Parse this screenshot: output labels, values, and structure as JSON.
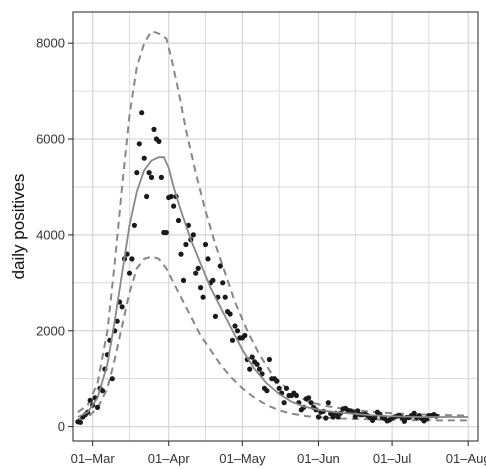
{
  "chart_data": {
    "type": "scatter",
    "title": "",
    "xlabel": "",
    "ylabel": "daily positives",
    "x_axis": {
      "type": "date",
      "range": [
        "2020-02-22",
        "2020-08-05"
      ],
      "ticks": [
        {
          "date": "2020-03-01",
          "label": "01–Mar"
        },
        {
          "date": "2020-04-01",
          "label": "01–Apr"
        },
        {
          "date": "2020-05-01",
          "label": "01–May"
        },
        {
          "date": "2020-06-01",
          "label": "01–Jun"
        },
        {
          "date": "2020-07-01",
          "label": "01–Jul"
        },
        {
          "date": "2020-08-01",
          "label": "01–Aug"
        }
      ]
    },
    "y_axis": {
      "range": [
        -300,
        8650
      ],
      "ticks": [
        0,
        2000,
        4000,
        6000,
        8000
      ]
    },
    "grid": true,
    "colors": {
      "points": "#1a1a1a",
      "fit": "#888888",
      "band": "#888888",
      "grid": "#d6d6d6",
      "frame": "#222222"
    },
    "series": [
      {
        "kind": "points",
        "points": [
          [
            "2020-02-24",
            100
          ],
          [
            "2020-02-25",
            90
          ],
          [
            "2020-02-26",
            200
          ],
          [
            "2020-02-27",
            250
          ],
          [
            "2020-02-28",
            300
          ],
          [
            "2020-02-29",
            550
          ],
          [
            "2020-03-01",
            450
          ],
          [
            "2020-03-02",
            600
          ],
          [
            "2020-03-03",
            400
          ],
          [
            "2020-03-04",
            800
          ],
          [
            "2020-03-05",
            750
          ],
          [
            "2020-03-06",
            1200
          ],
          [
            "2020-03-07",
            1500
          ],
          [
            "2020-03-08",
            1800
          ],
          [
            "2020-03-09",
            1000
          ],
          [
            "2020-03-10",
            2000
          ],
          [
            "2020-03-11",
            2200
          ],
          [
            "2020-03-12",
            2600
          ],
          [
            "2020-03-13",
            2500
          ],
          [
            "2020-03-14",
            3500
          ],
          [
            "2020-03-15",
            3600
          ],
          [
            "2020-03-16",
            3200
          ],
          [
            "2020-03-17",
            3500
          ],
          [
            "2020-03-18",
            4200
          ],
          [
            "2020-03-19",
            5300
          ],
          [
            "2020-03-20",
            5900
          ],
          [
            "2020-03-21",
            6550
          ],
          [
            "2020-03-22",
            5600
          ],
          [
            "2020-03-23",
            4800
          ],
          [
            "2020-03-24",
            5300
          ],
          [
            "2020-03-25",
            5200
          ],
          [
            "2020-03-26",
            6200
          ],
          [
            "2020-03-27",
            6000
          ],
          [
            "2020-03-28",
            5950
          ],
          [
            "2020-03-29",
            5200
          ],
          [
            "2020-03-30",
            4050
          ],
          [
            "2020-03-31",
            4050
          ],
          [
            "2020-04-01",
            4780
          ],
          [
            "2020-04-02",
            4800
          ],
          [
            "2020-04-03",
            4600
          ],
          [
            "2020-04-04",
            4800
          ],
          [
            "2020-04-05",
            4300
          ],
          [
            "2020-04-06",
            3600
          ],
          [
            "2020-04-07",
            3050
          ],
          [
            "2020-04-08",
            3800
          ],
          [
            "2020-04-09",
            4200
          ],
          [
            "2020-04-10",
            3900
          ],
          [
            "2020-04-11",
            4000
          ],
          [
            "2020-04-12",
            3200
          ],
          [
            "2020-04-13",
            3300
          ],
          [
            "2020-04-14",
            2900
          ],
          [
            "2020-04-15",
            2700
          ],
          [
            "2020-04-16",
            3800
          ],
          [
            "2020-04-17",
            3500
          ],
          [
            "2020-04-18",
            3000
          ],
          [
            "2020-04-19",
            3050
          ],
          [
            "2020-04-20",
            2300
          ],
          [
            "2020-04-21",
            2700
          ],
          [
            "2020-04-22",
            3350
          ],
          [
            "2020-04-23",
            3000
          ],
          [
            "2020-04-24",
            2700
          ],
          [
            "2020-04-25",
            2400
          ],
          [
            "2020-04-26",
            2350
          ],
          [
            "2020-04-27",
            1800
          ],
          [
            "2020-04-28",
            2100
          ],
          [
            "2020-04-29",
            2000
          ],
          [
            "2020-04-30",
            1850
          ],
          [
            "2020-05-01",
            1850
          ],
          [
            "2020-05-02",
            1900
          ],
          [
            "2020-05-03",
            1400
          ],
          [
            "2020-05-04",
            1200
          ],
          [
            "2020-05-05",
            1450
          ],
          [
            "2020-05-06",
            1350
          ],
          [
            "2020-05-07",
            1300
          ],
          [
            "2020-05-08",
            1200
          ],
          [
            "2020-05-09",
            1100
          ],
          [
            "2020-05-10",
            800
          ],
          [
            "2020-05-11",
            750
          ],
          [
            "2020-05-12",
            1400
          ],
          [
            "2020-05-13",
            1000
          ],
          [
            "2020-05-14",
            1000
          ],
          [
            "2020-05-15",
            950
          ],
          [
            "2020-05-16",
            800
          ],
          [
            "2020-05-17",
            700
          ],
          [
            "2020-05-18",
            500
          ],
          [
            "2020-05-19",
            800
          ],
          [
            "2020-05-20",
            650
          ],
          [
            "2020-05-21",
            650
          ],
          [
            "2020-05-22",
            700
          ],
          [
            "2020-05-23",
            650
          ],
          [
            "2020-05-24",
            500
          ],
          [
            "2020-05-25",
            350
          ],
          [
            "2020-05-26",
            400
          ],
          [
            "2020-05-27",
            580
          ],
          [
            "2020-05-28",
            600
          ],
          [
            "2020-05-29",
            500
          ],
          [
            "2020-05-30",
            400
          ],
          [
            "2020-05-31",
            350
          ],
          [
            "2020-06-01",
            200
          ],
          [
            "2020-06-02",
            300
          ],
          [
            "2020-06-03",
            320
          ],
          [
            "2020-06-04",
            180
          ],
          [
            "2020-06-05",
            500
          ],
          [
            "2020-06-06",
            270
          ],
          [
            "2020-06-07",
            200
          ],
          [
            "2020-06-08",
            280
          ],
          [
            "2020-06-09",
            200
          ],
          [
            "2020-06-10",
            280
          ],
          [
            "2020-06-11",
            370
          ],
          [
            "2020-06-12",
            380
          ],
          [
            "2020-06-13",
            340
          ],
          [
            "2020-06-14",
            330
          ],
          [
            "2020-06-15",
            300
          ],
          [
            "2020-06-16",
            210
          ],
          [
            "2020-06-17",
            330
          ],
          [
            "2020-06-18",
            250
          ],
          [
            "2020-06-19",
            250
          ],
          [
            "2020-06-20",
            260
          ],
          [
            "2020-06-21",
            230
          ],
          [
            "2020-06-22",
            190
          ],
          [
            "2020-06-23",
            130
          ],
          [
            "2020-06-24",
            190
          ],
          [
            "2020-06-25",
            300
          ],
          [
            "2020-06-26",
            260
          ],
          [
            "2020-06-27",
            190
          ],
          [
            "2020-06-28",
            170
          ],
          [
            "2020-06-29",
            120
          ],
          [
            "2020-06-30",
            140
          ],
          [
            "2020-07-01",
            180
          ],
          [
            "2020-07-02",
            200
          ],
          [
            "2020-07-03",
            220
          ],
          [
            "2020-07-04",
            230
          ],
          [
            "2020-07-05",
            190
          ],
          [
            "2020-07-06",
            110
          ],
          [
            "2020-07-07",
            190
          ],
          [
            "2020-07-08",
            190
          ],
          [
            "2020-07-09",
            230
          ],
          [
            "2020-07-10",
            280
          ],
          [
            "2020-07-11",
            190
          ],
          [
            "2020-07-12",
            230
          ],
          [
            "2020-07-13",
            170
          ],
          [
            "2020-07-14",
            120
          ],
          [
            "2020-07-15",
            160
          ],
          [
            "2020-07-16",
            230
          ],
          [
            "2020-07-17",
            230
          ],
          [
            "2020-07-18",
            250
          ],
          [
            "2020-07-19",
            220
          ]
        ]
      },
      {
        "kind": "fit",
        "points": [
          [
            "2020-02-24",
            200
          ],
          [
            "2020-02-28",
            300
          ],
          [
            "2020-03-03",
            600
          ],
          [
            "2020-03-07",
            1300
          ],
          [
            "2020-03-10",
            2200
          ],
          [
            "2020-03-13",
            3200
          ],
          [
            "2020-03-16",
            4200
          ],
          [
            "2020-03-19",
            4900
          ],
          [
            "2020-03-22",
            5350
          ],
          [
            "2020-03-25",
            5550
          ],
          [
            "2020-03-28",
            5620
          ],
          [
            "2020-03-30",
            5620
          ],
          [
            "2020-04-01",
            5400
          ],
          [
            "2020-04-03",
            5000
          ],
          [
            "2020-04-06",
            4500
          ],
          [
            "2020-04-10",
            3900
          ],
          [
            "2020-04-14",
            3400
          ],
          [
            "2020-04-18",
            2900
          ],
          [
            "2020-04-22",
            2500
          ],
          [
            "2020-04-26",
            2100
          ],
          [
            "2020-05-01",
            1600
          ],
          [
            "2020-05-06",
            1200
          ],
          [
            "2020-05-11",
            900
          ],
          [
            "2020-05-16",
            680
          ],
          [
            "2020-05-21",
            520
          ],
          [
            "2020-05-26",
            420
          ],
          [
            "2020-06-01",
            350
          ],
          [
            "2020-06-08",
            300
          ],
          [
            "2020-06-15",
            270
          ],
          [
            "2020-06-22",
            240
          ],
          [
            "2020-06-29",
            220
          ],
          [
            "2020-07-06",
            210
          ],
          [
            "2020-07-13",
            200
          ],
          [
            "2020-07-20",
            200
          ],
          [
            "2020-07-27",
            200
          ],
          [
            "2020-08-01",
            200
          ]
        ]
      },
      {
        "kind": "band-upper",
        "points": [
          [
            "2020-02-24",
            300
          ],
          [
            "2020-02-28",
            450
          ],
          [
            "2020-03-03",
            900
          ],
          [
            "2020-03-07",
            2000
          ],
          [
            "2020-03-10",
            3400
          ],
          [
            "2020-03-13",
            5000
          ],
          [
            "2020-03-16",
            6500
          ],
          [
            "2020-03-19",
            7500
          ],
          [
            "2020-03-22",
            8000
          ],
          [
            "2020-03-25",
            8250
          ],
          [
            "2020-03-28",
            8200
          ],
          [
            "2020-03-31",
            8100
          ],
          [
            "2020-04-02",
            7700
          ],
          [
            "2020-04-05",
            7000
          ],
          [
            "2020-04-08",
            6200
          ],
          [
            "2020-04-12",
            5300
          ],
          [
            "2020-04-16",
            4500
          ],
          [
            "2020-04-20",
            3800
          ],
          [
            "2020-04-24",
            3200
          ],
          [
            "2020-04-28",
            2600
          ],
          [
            "2020-05-03",
            2000
          ],
          [
            "2020-05-08",
            1500
          ],
          [
            "2020-05-13",
            1100
          ],
          [
            "2020-05-18",
            850
          ],
          [
            "2020-05-23",
            650
          ],
          [
            "2020-05-28",
            520
          ],
          [
            "2020-06-03",
            440
          ],
          [
            "2020-06-10",
            380
          ],
          [
            "2020-06-17",
            340
          ],
          [
            "2020-06-24",
            300
          ],
          [
            "2020-07-01",
            280
          ],
          [
            "2020-07-08",
            260
          ],
          [
            "2020-07-15",
            250
          ],
          [
            "2020-07-22",
            240
          ],
          [
            "2020-08-01",
            230
          ]
        ]
      },
      {
        "kind": "band-lower",
        "points": [
          [
            "2020-02-24",
            150
          ],
          [
            "2020-02-28",
            200
          ],
          [
            "2020-03-03",
            380
          ],
          [
            "2020-03-07",
            800
          ],
          [
            "2020-03-10",
            1400
          ],
          [
            "2020-03-13",
            2100
          ],
          [
            "2020-03-16",
            2800
          ],
          [
            "2020-03-19",
            3300
          ],
          [
            "2020-03-22",
            3500
          ],
          [
            "2020-03-25",
            3550
          ],
          [
            "2020-03-28",
            3500
          ],
          [
            "2020-03-31",
            3300
          ],
          [
            "2020-04-03",
            3000
          ],
          [
            "2020-04-06",
            2700
          ],
          [
            "2020-04-10",
            2300
          ],
          [
            "2020-04-14",
            1900
          ],
          [
            "2020-04-18",
            1600
          ],
          [
            "2020-04-22",
            1300
          ],
          [
            "2020-04-26",
            1050
          ],
          [
            "2020-05-01",
            800
          ],
          [
            "2020-05-06",
            600
          ],
          [
            "2020-05-11",
            450
          ],
          [
            "2020-05-16",
            340
          ],
          [
            "2020-05-21",
            270
          ],
          [
            "2020-05-27",
            220
          ],
          [
            "2020-06-03",
            190
          ],
          [
            "2020-06-10",
            170
          ],
          [
            "2020-06-17",
            160
          ],
          [
            "2020-06-24",
            150
          ],
          [
            "2020-07-01",
            140
          ],
          [
            "2020-07-10",
            135
          ],
          [
            "2020-07-20",
            130
          ],
          [
            "2020-08-01",
            130
          ]
        ]
      }
    ]
  }
}
